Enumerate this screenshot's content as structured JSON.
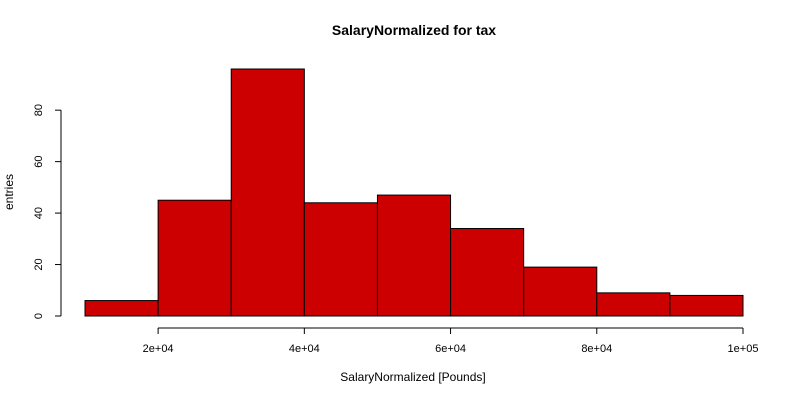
{
  "chart_data": {
    "type": "bar",
    "title": "SalaryNormalized for tax",
    "xlabel": "SalaryNormalized [Pounds]",
    "ylabel": "entries",
    "bins": [
      {
        "start": 10000,
        "end": 20000,
        "value": 6
      },
      {
        "start": 20000,
        "end": 30000,
        "value": 45
      },
      {
        "start": 30000,
        "end": 40000,
        "value": 96
      },
      {
        "start": 40000,
        "end": 50000,
        "value": 44
      },
      {
        "start": 50000,
        "end": 60000,
        "value": 47
      },
      {
        "start": 60000,
        "end": 70000,
        "value": 34
      },
      {
        "start": 70000,
        "end": 80000,
        "value": 19
      },
      {
        "start": 80000,
        "end": 90000,
        "value": 9
      },
      {
        "start": 90000,
        "end": 100000,
        "value": 8
      }
    ],
    "xlim": [
      10000,
      100000
    ],
    "ylim": [
      0,
      96
    ],
    "x_ticks": [
      {
        "value": 20000,
        "label": "2e+04"
      },
      {
        "value": 40000,
        "label": "4e+04"
      },
      {
        "value": 60000,
        "label": "6e+04"
      },
      {
        "value": 80000,
        "label": "8e+04"
      },
      {
        "value": 100000,
        "label": "1e+05"
      }
    ],
    "y_ticks": [
      {
        "value": 0,
        "label": "0"
      },
      {
        "value": 20,
        "label": "20"
      },
      {
        "value": 40,
        "label": "40"
      },
      {
        "value": 60,
        "label": "60"
      },
      {
        "value": 80,
        "label": "80"
      }
    ],
    "bar_color": "#cc0000",
    "grid": false,
    "legend": "none"
  }
}
